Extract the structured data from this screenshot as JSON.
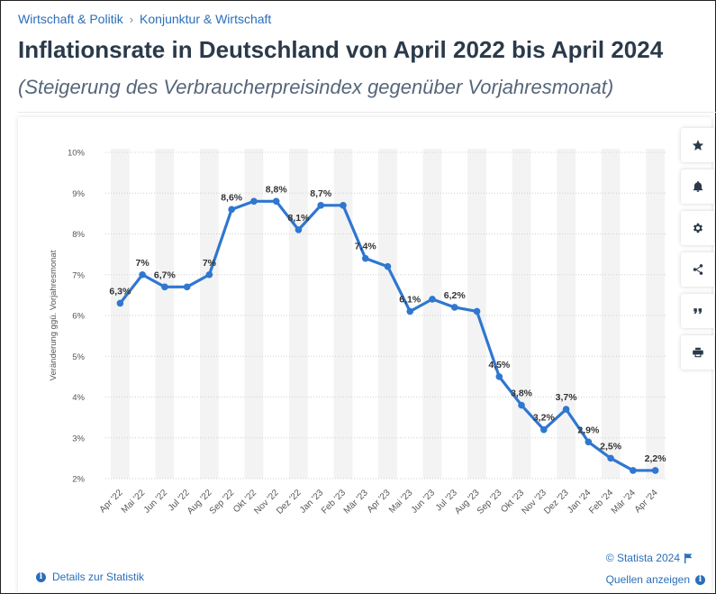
{
  "breadcrumb": {
    "items": [
      "Wirtschaft & Politik",
      "Konjunktur & Wirtschaft"
    ],
    "separator": "›"
  },
  "header": {
    "title": "Inflationsrate in Deutschland von April 2022 bis April 2024",
    "subtitle": "(Steigerung des Verbraucherpreisindex gegenüber Vorjahresmonat)"
  },
  "side_buttons": [
    {
      "name": "favorite-button",
      "icon": "star-icon"
    },
    {
      "name": "notification-button",
      "icon": "bell-icon"
    },
    {
      "name": "settings-button",
      "icon": "gear-icon"
    },
    {
      "name": "share-button",
      "icon": "share-icon"
    },
    {
      "name": "cite-button",
      "icon": "quote-icon"
    },
    {
      "name": "print-button",
      "icon": "printer-icon"
    }
  ],
  "footer": {
    "copyright": "© Statista 2024",
    "details_link": "Details zur Statistik",
    "sources_link": "Quellen anzeigen"
  },
  "colors": {
    "line": "#2f77d0",
    "band": "#f3f3f3",
    "grid": "#d0d0d0",
    "text": "#333333",
    "link": "#2a6ebb"
  },
  "chart_data": {
    "type": "line",
    "title": "Inflationsrate in Deutschland von April 2022 bis April 2024",
    "xlabel": "",
    "ylabel": "Veränderung ggü. Vorjahresmonat",
    "ylim": [
      2,
      10
    ],
    "yticks": [
      2,
      3,
      4,
      5,
      6,
      7,
      8,
      9,
      10
    ],
    "ytick_labels": [
      "2%",
      "3%",
      "4%",
      "5%",
      "6%",
      "7%",
      "8%",
      "9%",
      "10%"
    ],
    "grid": true,
    "categories": [
      "Apr '22",
      "Mai '22",
      "Jun '22",
      "Jul '22",
      "Aug '22",
      "Sep '22",
      "Okt '22",
      "Nov '22",
      "Dez '22",
      "Jan '23",
      "Feb '23",
      "Mär '23",
      "Apr '23",
      "Mai '23",
      "Jun '23",
      "Jul '23",
      "Aug '23",
      "Sep '23",
      "Okt '23",
      "Nov '23",
      "Dez '23",
      "Jan '24",
      "Feb '24",
      "Mär '24",
      "Apr '24"
    ],
    "series": [
      {
        "name": "Inflationsrate",
        "values": [
          6.3,
          7.0,
          6.7,
          6.7,
          7.0,
          8.6,
          8.8,
          8.8,
          8.1,
          8.7,
          8.7,
          7.4,
          7.2,
          6.1,
          6.4,
          6.2,
          6.1,
          4.5,
          3.8,
          3.2,
          3.7,
          2.9,
          2.5,
          2.2,
          2.2
        ]
      }
    ],
    "data_labels": [
      {
        "index": 0,
        "text": "6,3%"
      },
      {
        "index": 1,
        "text": "7%"
      },
      {
        "index": 2,
        "text": "6,7%"
      },
      {
        "index": 4,
        "text": "7%"
      },
      {
        "index": 5,
        "text": "8,6%"
      },
      {
        "index": 7,
        "text": "8,8%"
      },
      {
        "index": 8,
        "text": "8,1%"
      },
      {
        "index": 9,
        "text": "8,7%"
      },
      {
        "index": 11,
        "text": "7,4%"
      },
      {
        "index": 13,
        "text": "6,1%"
      },
      {
        "index": 15,
        "text": "6,2%"
      },
      {
        "index": 17,
        "text": "4,5%"
      },
      {
        "index": 18,
        "text": "3,8%"
      },
      {
        "index": 19,
        "text": "3,2%"
      },
      {
        "index": 20,
        "text": "3,7%"
      },
      {
        "index": 21,
        "text": "2,9%"
      },
      {
        "index": 22,
        "text": "2,5%"
      },
      {
        "index": 24,
        "text": "2,2%"
      }
    ]
  }
}
